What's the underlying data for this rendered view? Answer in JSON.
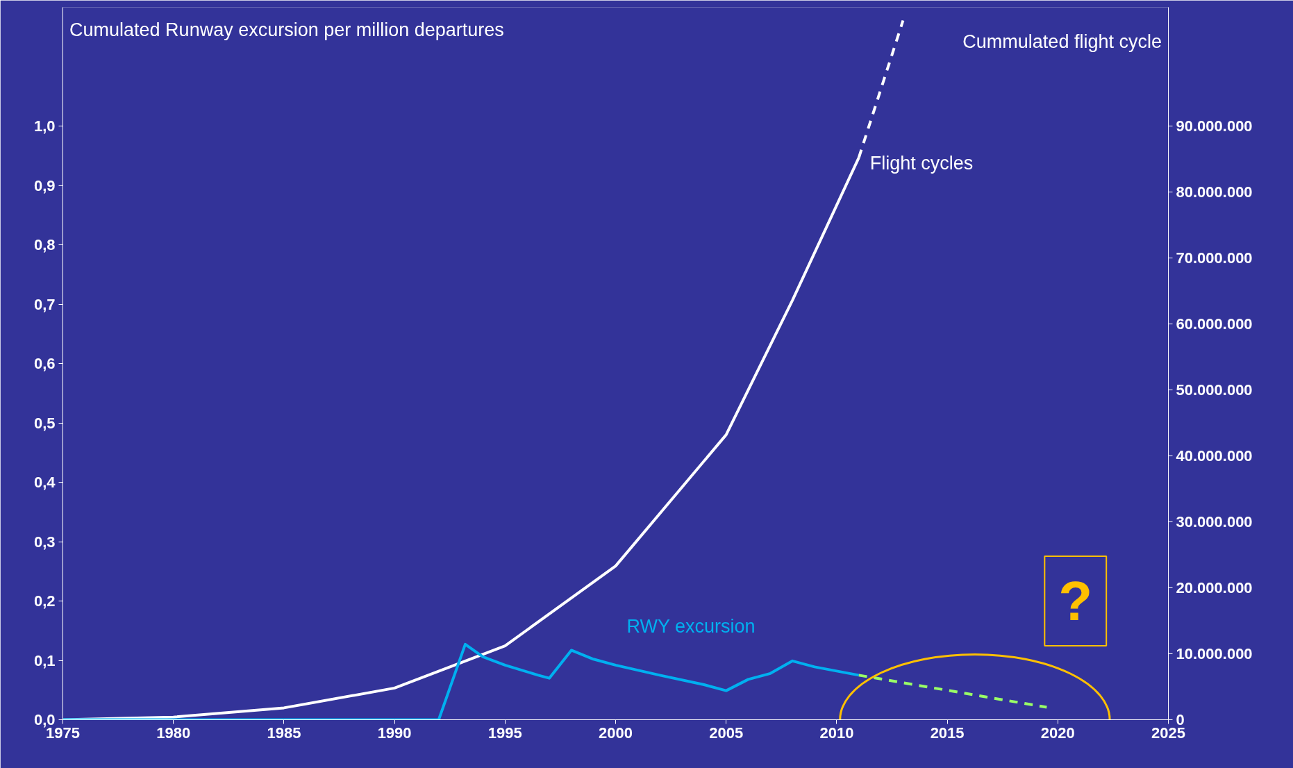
{
  "chart_data": {
    "type": "line",
    "ylabel": "Cumulated Runway excursion per million departures",
    "y2label": "Cummulated flight cycle",
    "xlim": [
      1975,
      2025
    ],
    "xticks": [
      1975,
      1980,
      1985,
      1990,
      1995,
      2000,
      2005,
      2010,
      2015,
      2020,
      2025
    ],
    "ylim": [
      0,
      1.2
    ],
    "yticks": [
      {
        "value": 0,
        "label": "0,0"
      },
      {
        "value": 0.1,
        "label": "0,1"
      },
      {
        "value": 0.2,
        "label": "0,2"
      },
      {
        "value": 0.3,
        "label": "0,3"
      },
      {
        "value": 0.4,
        "label": "0,4"
      },
      {
        "value": 0.5,
        "label": "0,5"
      },
      {
        "value": 0.6,
        "label": "0,6"
      },
      {
        "value": 0.7,
        "label": "0,7"
      },
      {
        "value": 0.8,
        "label": "0,8"
      },
      {
        "value": 0.9,
        "label": "0,9"
      },
      {
        "value": 1.0,
        "label": "1,0"
      }
    ],
    "y2lim": [
      0,
      108000000
    ],
    "y2ticks": [
      0,
      {
        "value": 10000000,
        "label": "10.000.000"
      },
      {
        "value": 20000000,
        "label": "20.000.000"
      },
      {
        "value": 30000000,
        "label": "30.000.000"
      },
      {
        "value": 40000000,
        "label": "40.000.000"
      },
      {
        "value": 50000000,
        "label": "50.000.000"
      },
      {
        "value": 60000000,
        "label": "60.000.000"
      },
      {
        "value": 70000000,
        "label": "70.000.000"
      },
      {
        "value": 80000000,
        "label": "80.000.000"
      },
      {
        "value": 90000000,
        "label": "90.000.000"
      }
    ],
    "series": [
      {
        "color": "#ffffff",
        "axis": "y2",
        "line_style": "solid",
        "x": [
          1975,
          1980,
          1985,
          1990,
          1995,
          2000,
          2005,
          2008,
          2011
        ],
        "values": [
          0,
          400000,
          1800000,
          4800000,
          11200000,
          23300000,
          43200000,
          63600000,
          85200000
        ]
      },
      {
        "color": "#ffffff",
        "axis": "y2",
        "line_style": "dashed",
        "x": [
          2011,
          2013
        ],
        "values": [
          85200000,
          106000000
        ]
      },
      {
        "color": "#00b0f0",
        "line_style": "solid",
        "x": [
          1975,
          1991.5,
          1992,
          1993.2,
          1994,
          1995,
          1996.5,
          1997,
          1998,
          1999,
          2000,
          2002,
          2004,
          2005,
          2006,
          2007,
          2008,
          2009,
          2011
        ],
        "values": [
          0,
          0,
          0,
          0.127,
          0.106,
          0.092,
          0.075,
          0.07,
          0.117,
          0.102,
          0.092,
          0.075,
          0.059,
          0.049,
          0.068,
          0.078,
          0.099,
          0.089,
          0.075
        ]
      },
      {
        "color": "#99ff66",
        "line_style": "dashed",
        "x": [
          2011,
          2019.5
        ],
        "values": [
          0.075,
          0.021
        ]
      }
    ],
    "annotations": [
      "Flight cycles",
      "RWY excursion",
      "?"
    ]
  }
}
